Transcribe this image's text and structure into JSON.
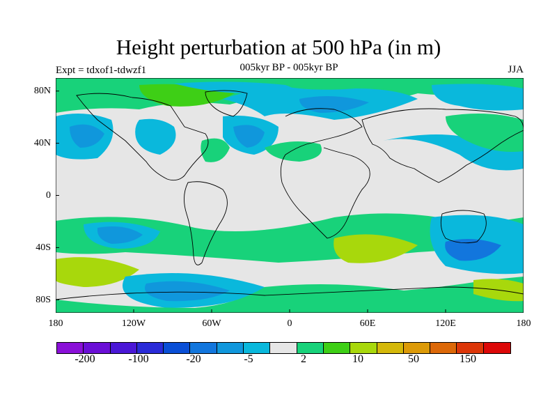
{
  "title": "Height perturbation at 500 hPa (in m)",
  "subtitle": "005kyr BP - 005kyr BP",
  "left_label": "Expt = tdxof1-tdwzf1",
  "right_label": "JJA",
  "lat_labels": [
    "80N",
    "40N",
    "0",
    "40S",
    "80S"
  ],
  "lon_labels": [
    "180",
    "120W",
    "60W",
    "0",
    "60E",
    "120E",
    "180"
  ],
  "colorbar": {
    "colors": [
      "#8a10d8",
      "#6a0fd6",
      "#4a17d6",
      "#2a2bd8",
      "#0a4fd6",
      "#1276dd",
      "#1097dc",
      "#0ab8dc",
      "#e6e6e6",
      "#18d27a",
      "#3ecf16",
      "#a8d80c",
      "#d4b80a",
      "#dc9a08",
      "#dc6808",
      "#dc3608",
      "#dc0808"
    ],
    "tick_labels": [
      "-200",
      "-100",
      "-20",
      "-5",
      "2",
      "10",
      "50",
      "150"
    ]
  }
}
